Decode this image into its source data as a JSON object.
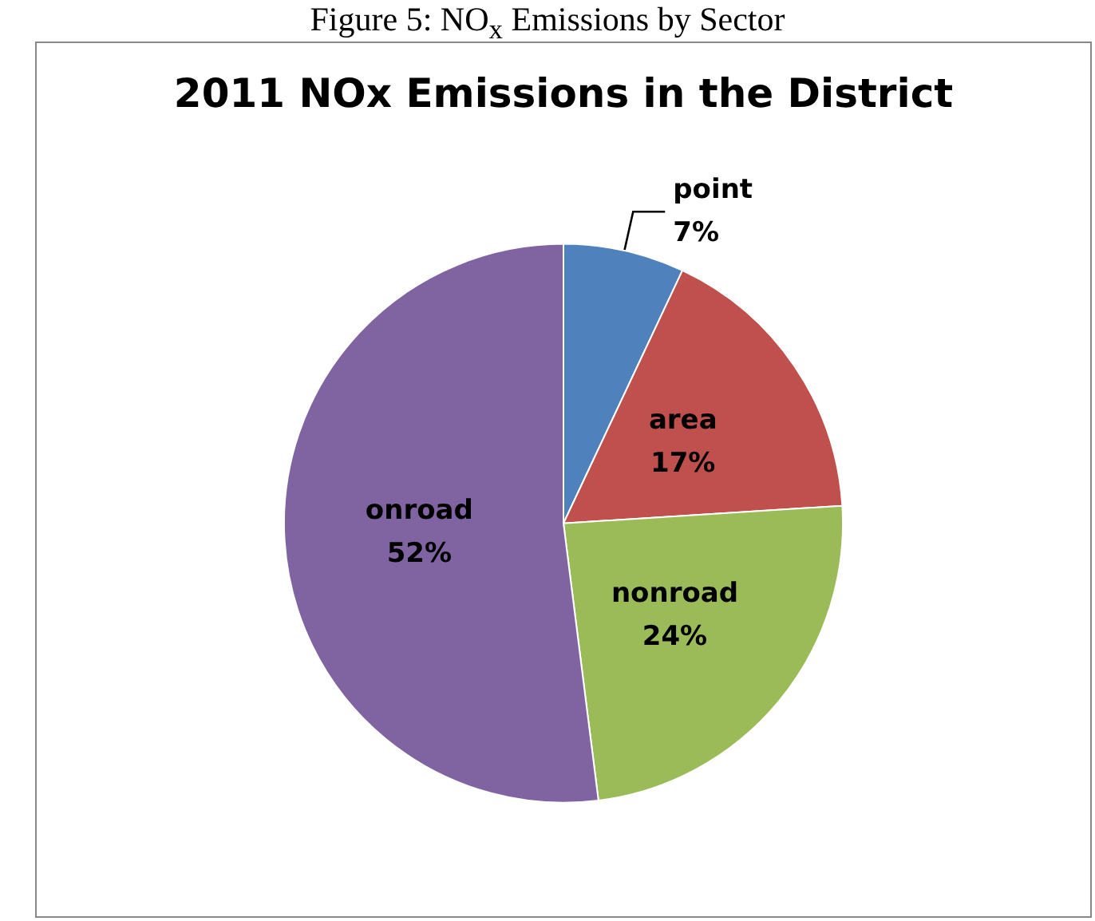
{
  "chart_data": {
    "type": "pie",
    "title": "2011 NOx Emissions in the District",
    "annotations": [
      "Figure 5: NO$_{x}$ Emissions by Sector"
    ],
    "categories": [
      "point",
      "area",
      "nonroad",
      "onroad"
    ],
    "values": [
      7,
      17,
      24,
      52
    ],
    "value_labels": [
      "7%",
      "17%",
      "24%",
      "52%"
    ],
    "colors": [
      "#4f81bd",
      "#c0504d",
      "#9bbb59",
      "#8064a2"
    ],
    "legend": false
  }
}
